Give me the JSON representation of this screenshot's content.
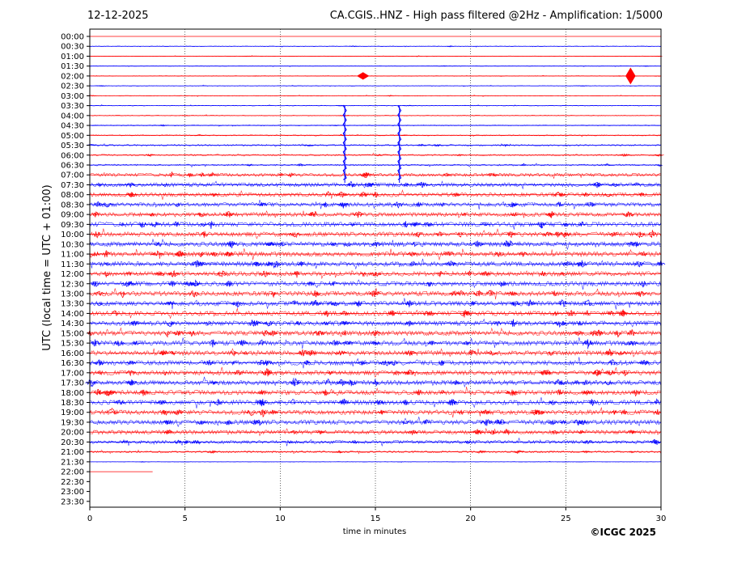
{
  "header": {
    "date": "12-12-2025",
    "title": "CA.CGIS..HNZ - High pass filtered @2Hz - Amplification: 1/5000"
  },
  "footer": {
    "copyright": "©ICGC 2025"
  },
  "chart_data": {
    "type": "line",
    "subtype": "helicorder",
    "xlabel": "time in minutes",
    "ylabel": "UTC (local time = UTC + 01:00)",
    "xlim": [
      0,
      30
    ],
    "x_ticks": [
      0,
      5,
      10,
      15,
      20,
      25,
      30
    ],
    "grid": "vertical dotted at 5-minute intervals",
    "colors": [
      "#ff0000",
      "#0000ff"
    ],
    "rows": [
      {
        "label": "00:00",
        "color": "#ff0000",
        "fill": 1,
        "level": 0.03
      },
      {
        "label": "00:30",
        "color": "#0000ff",
        "fill": 1,
        "level": 0.05
      },
      {
        "label": "01:00",
        "color": "#ff0000",
        "fill": 1,
        "level": 0.04
      },
      {
        "label": "01:30",
        "color": "#0000ff",
        "fill": 1,
        "level": 0.04
      },
      {
        "label": "02:00",
        "color": "#ff0000",
        "fill": 1,
        "level": 0.05
      },
      {
        "label": "02:30",
        "color": "#0000ff",
        "fill": 1,
        "level": 0.05
      },
      {
        "label": "03:00",
        "color": "#ff0000",
        "fill": 1,
        "level": 0.05
      },
      {
        "label": "03:30",
        "color": "#0000ff",
        "fill": 1,
        "level": 0.06
      },
      {
        "label": "04:00",
        "color": "#ff0000",
        "fill": 1,
        "level": 0.06
      },
      {
        "label": "04:30",
        "color": "#0000ff",
        "fill": 1,
        "level": 0.07
      },
      {
        "label": "05:00",
        "color": "#ff0000",
        "fill": 1,
        "level": 0.08
      },
      {
        "label": "05:30",
        "color": "#0000ff",
        "fill": 1,
        "level": 0.12
      },
      {
        "label": "06:00",
        "color": "#ff0000",
        "fill": 1,
        "level": 0.12
      },
      {
        "label": "06:30",
        "color": "#0000ff",
        "fill": 1,
        "level": 0.12
      },
      {
        "label": "07:00",
        "color": "#ff0000",
        "fill": 1,
        "level": 0.25
      },
      {
        "label": "07:30",
        "color": "#0000ff",
        "fill": 1,
        "level": 0.3
      },
      {
        "label": "08:00",
        "color": "#ff0000",
        "fill": 1,
        "level": 0.3
      },
      {
        "label": "08:30",
        "color": "#0000ff",
        "fill": 1,
        "level": 0.3
      },
      {
        "label": "09:00",
        "color": "#ff0000",
        "fill": 1,
        "level": 0.3
      },
      {
        "label": "09:30",
        "color": "#0000ff",
        "fill": 1,
        "level": 0.35
      },
      {
        "label": "10:00",
        "color": "#ff0000",
        "fill": 1,
        "level": 0.35
      },
      {
        "label": "10:30",
        "color": "#0000ff",
        "fill": 1,
        "level": 0.35
      },
      {
        "label": "11:00",
        "color": "#ff0000",
        "fill": 1,
        "level": 0.35
      },
      {
        "label": "11:30",
        "color": "#0000ff",
        "fill": 1,
        "level": 0.35
      },
      {
        "label": "12:00",
        "color": "#ff0000",
        "fill": 1,
        "level": 0.35
      },
      {
        "label": "12:30",
        "color": "#0000ff",
        "fill": 1,
        "level": 0.35
      },
      {
        "label": "13:00",
        "color": "#ff0000",
        "fill": 1,
        "level": 0.35
      },
      {
        "label": "13:30",
        "color": "#0000ff",
        "fill": 1,
        "level": 0.35
      },
      {
        "label": "14:00",
        "color": "#ff0000",
        "fill": 1,
        "level": 0.35
      },
      {
        "label": "14:30",
        "color": "#0000ff",
        "fill": 1,
        "level": 0.35
      },
      {
        "label": "15:00",
        "color": "#ff0000",
        "fill": 1,
        "level": 0.35
      },
      {
        "label": "15:30",
        "color": "#0000ff",
        "fill": 1,
        "level": 0.35
      },
      {
        "label": "16:00",
        "color": "#ff0000",
        "fill": 1,
        "level": 0.35
      },
      {
        "label": "16:30",
        "color": "#0000ff",
        "fill": 1,
        "level": 0.35
      },
      {
        "label": "17:00",
        "color": "#ff0000",
        "fill": 1,
        "level": 0.35
      },
      {
        "label": "17:30",
        "color": "#0000ff",
        "fill": 1,
        "level": 0.35
      },
      {
        "label": "18:00",
        "color": "#ff0000",
        "fill": 1,
        "level": 0.35
      },
      {
        "label": "18:30",
        "color": "#0000ff",
        "fill": 1,
        "level": 0.35
      },
      {
        "label": "19:00",
        "color": "#ff0000",
        "fill": 1,
        "level": 0.35
      },
      {
        "label": "19:30",
        "color": "#0000ff",
        "fill": 1,
        "level": 0.35
      },
      {
        "label": "20:00",
        "color": "#ff0000",
        "fill": 1,
        "level": 0.3
      },
      {
        "label": "20:30",
        "color": "#0000ff",
        "fill": 1,
        "level": 0.25
      },
      {
        "label": "21:00",
        "color": "#ff0000",
        "fill": 1,
        "level": 0.15
      },
      {
        "label": "21:30",
        "color": "#0000ff",
        "fill": 1,
        "level": 0.04
      },
      {
        "label": "22:00",
        "color": "#ff0000",
        "fill": 0.11,
        "level": 0.02
      },
      {
        "label": "22:30",
        "color": "#0000ff",
        "fill": 0,
        "level": 0
      },
      {
        "label": "23:00",
        "color": "#ff0000",
        "fill": 0,
        "level": 0
      },
      {
        "label": "23:30",
        "color": "#0000ff",
        "fill": 0,
        "level": 0
      }
    ],
    "events": [
      {
        "row": "03:30",
        "t": 13.35,
        "amplitude": -7.8,
        "duration": 0.12
      },
      {
        "row": "03:30",
        "t": 16.22,
        "amplitude": -7.8,
        "duration": 0.12
      },
      {
        "row": "02:00",
        "t": 28.4,
        "amplitude": 0.8,
        "duration": 0.25
      },
      {
        "row": "02:00",
        "t": 14.35,
        "amplitude": 0.35,
        "duration": 0.3
      }
    ]
  }
}
